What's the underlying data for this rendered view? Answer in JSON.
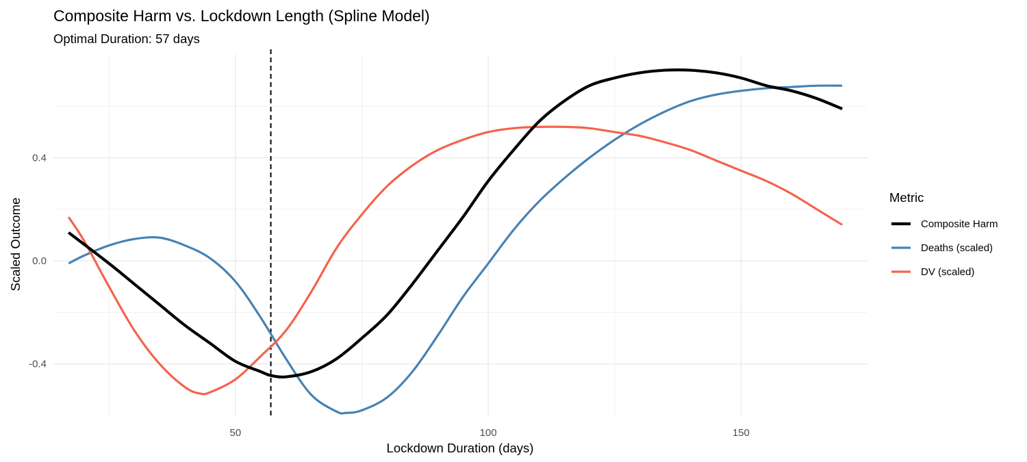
{
  "chart_data": {
    "type": "line",
    "title": "Composite Harm vs. Lockdown Length (Spline Model)",
    "subtitle": "Optimal Duration: 57 days",
    "xlabel": "Lockdown Duration (days)",
    "ylabel": "Scaled Outcome",
    "xlim": [
      14,
      175
    ],
    "ylim": [
      -0.6,
      0.8
    ],
    "x_ticks": [
      50,
      100,
      150
    ],
    "x_tick_labels": [
      "50",
      "100",
      "150"
    ],
    "y_ticks": [
      -0.4,
      0.0,
      0.4
    ],
    "y_tick_labels": [
      "-0.4",
      "0.0",
      "0.4"
    ],
    "grid": true,
    "legend": {
      "title": "Metric",
      "position": "right"
    },
    "vline": {
      "x": 57,
      "style": "dashed",
      "color": "#000000"
    },
    "series": [
      {
        "name": "Composite Harm",
        "color": "#000000",
        "emphasis": "thick",
        "x": [
          17,
          25,
          30,
          35,
          40,
          45,
          50,
          55,
          57,
          60,
          65,
          70,
          75,
          80,
          85,
          90,
          95,
          100,
          105,
          110,
          115,
          120,
          125,
          130,
          135,
          140,
          145,
          150,
          155,
          160,
          165,
          170
        ],
        "y": [
          0.11,
          -0.01,
          -0.09,
          -0.17,
          -0.25,
          -0.32,
          -0.39,
          -0.43,
          -0.445,
          -0.45,
          -0.43,
          -0.38,
          -0.3,
          -0.21,
          -0.09,
          0.04,
          0.17,
          0.31,
          0.43,
          0.54,
          0.62,
          0.68,
          0.71,
          0.73,
          0.74,
          0.74,
          0.73,
          0.71,
          0.68,
          0.66,
          0.63,
          0.59
        ]
      },
      {
        "name": "Deaths (scaled)",
        "color": "#4682b4",
        "emphasis": "normal",
        "x": [
          17,
          20,
          25,
          30,
          35,
          40,
          45,
          50,
          55,
          60,
          65,
          70,
          72,
          75,
          80,
          85,
          90,
          95,
          100,
          105,
          110,
          115,
          120,
          125,
          130,
          135,
          140,
          145,
          150,
          155,
          160,
          165,
          170
        ],
        "y": [
          -0.01,
          0.02,
          0.06,
          0.085,
          0.09,
          0.06,
          0.01,
          -0.08,
          -0.22,
          -0.38,
          -0.52,
          -0.585,
          -0.59,
          -0.58,
          -0.53,
          -0.43,
          -0.29,
          -0.14,
          -0.01,
          0.12,
          0.23,
          0.32,
          0.4,
          0.47,
          0.53,
          0.58,
          0.62,
          0.645,
          0.66,
          0.67,
          0.675,
          0.68,
          0.68
        ]
      },
      {
        "name": "DV (scaled)",
        "color": "#f4634a",
        "emphasis": "normal",
        "x": [
          17,
          20,
          25,
          30,
          35,
          40,
          43,
          45,
          50,
          55,
          60,
          65,
          70,
          75,
          80,
          85,
          90,
          95,
          100,
          105,
          110,
          115,
          120,
          125,
          130,
          135,
          140,
          145,
          150,
          155,
          160,
          165,
          170
        ],
        "y": [
          0.17,
          0.08,
          -0.1,
          -0.27,
          -0.4,
          -0.49,
          -0.515,
          -0.51,
          -0.46,
          -0.37,
          -0.27,
          -0.12,
          0.05,
          0.18,
          0.29,
          0.37,
          0.43,
          0.47,
          0.5,
          0.515,
          0.52,
          0.52,
          0.515,
          0.5,
          0.485,
          0.46,
          0.43,
          0.39,
          0.35,
          0.31,
          0.26,
          0.2,
          0.14
        ]
      }
    ]
  }
}
